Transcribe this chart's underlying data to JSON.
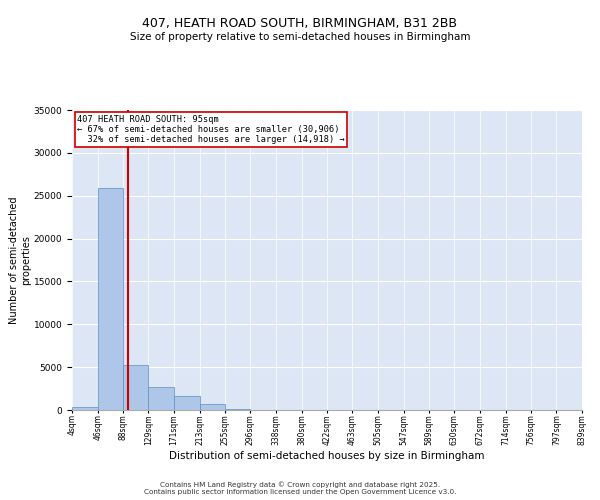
{
  "title_line1": "407, HEATH ROAD SOUTH, BIRMINGHAM, B31 2BB",
  "title_line2": "Size of property relative to semi-detached houses in Birmingham",
  "xlabel": "Distribution of semi-detached houses by size in Birmingham",
  "ylabel": "Number of semi-detached\nproperties",
  "property_label": "407 HEATH ROAD SOUTH: 95sqm",
  "pct_smaller": 67,
  "count_smaller": 30906,
  "pct_larger": 32,
  "count_larger": 14918,
  "bins": [
    4,
    46,
    88,
    129,
    171,
    213,
    255,
    296,
    338,
    380,
    422,
    463,
    505,
    547,
    589,
    630,
    672,
    714,
    756,
    797,
    839
  ],
  "counts": [
    300,
    25900,
    5200,
    2700,
    1600,
    700,
    150,
    50,
    30,
    15,
    10,
    5,
    3,
    2,
    2,
    1,
    1,
    1,
    0,
    0
  ],
  "bar_color": "#aec6e8",
  "bar_edge_color": "#5a8fc4",
  "vline_color": "#cc0000",
  "vline_x": 95,
  "annotation_box_color": "#cc0000",
  "background_color": "#dce6f5",
  "ylim": [
    0,
    35000
  ],
  "yticks": [
    0,
    5000,
    10000,
    15000,
    20000,
    25000,
    30000,
    35000
  ],
  "xlim": [
    4,
    839
  ],
  "footer_line1": "Contains HM Land Registry data © Crown copyright and database right 2025.",
  "footer_line2": "Contains public sector information licensed under the Open Government Licence v3.0."
}
